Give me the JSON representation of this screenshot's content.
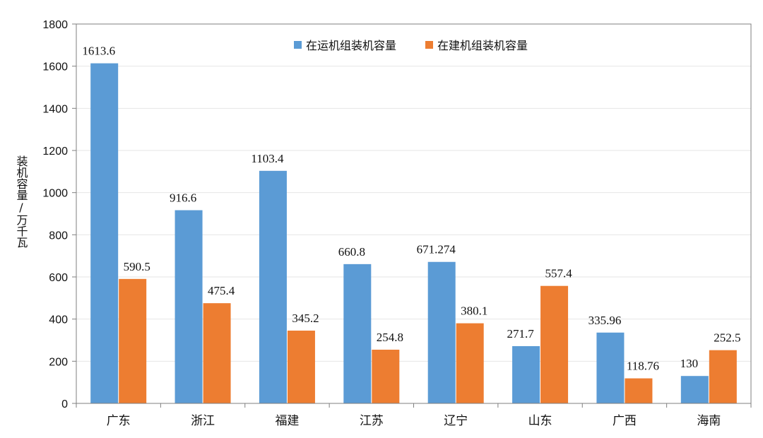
{
  "chart_data": {
    "type": "bar",
    "title": "",
    "xlabel": "",
    "ylabel": "装机容量/万千瓦",
    "ylim": [
      0,
      1800
    ],
    "yticks": [
      0,
      200,
      400,
      600,
      800,
      1000,
      1200,
      1400,
      1600,
      1800
    ],
    "ytick_labels": [
      "0",
      "200",
      "400",
      "600",
      "800",
      "1000",
      "1200",
      "1400",
      "1600",
      "1800"
    ],
    "grid": true,
    "legend": "top-center",
    "categories": [
      "广东",
      "浙江",
      "福建",
      "江苏",
      "辽宁",
      "山东",
      "广西",
      "海南"
    ],
    "series": [
      {
        "name": "在运机组装机容量",
        "color": "#5b9bd5",
        "values": [
          1613.6,
          916.6,
          1103.4,
          660.8,
          671.274,
          271.7,
          335.96,
          130
        ],
        "labels": [
          "1613.6",
          "916.6",
          "1103.4",
          "660.8",
          "671.274",
          "271.7",
          "335.96",
          "130"
        ]
      },
      {
        "name": "在建机组装机容量",
        "color": "#ed7d31",
        "values": [
          590.5,
          475.4,
          345.2,
          254.8,
          380.1,
          557.4,
          118.76,
          252.5
        ],
        "labels": [
          "590.5",
          "475.4",
          "345.2",
          "254.8",
          "380.1",
          "557.4",
          "118.76",
          "252.5"
        ]
      }
    ]
  }
}
